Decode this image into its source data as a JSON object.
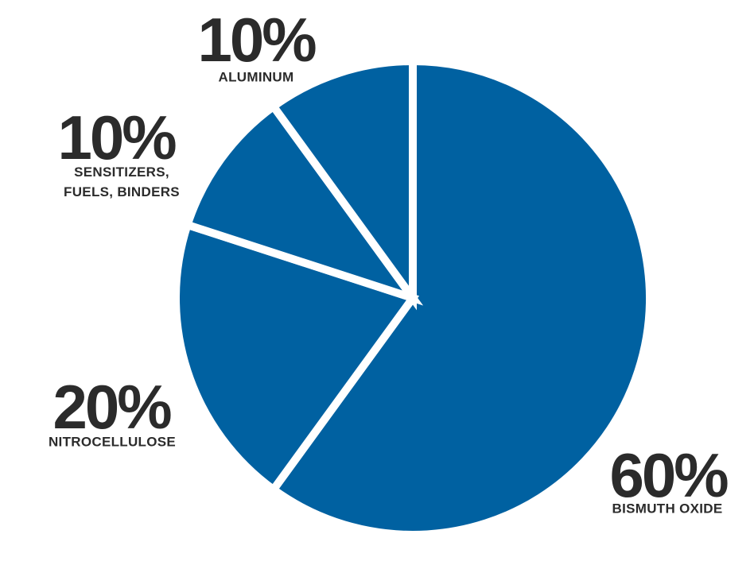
{
  "chart_data": {
    "type": "pie",
    "categories": [
      "BISMUTH OXIDE",
      "NITROCELLULOSE",
      "SENSITIZERS, FUELS, BINDERS",
      "ALUMINUM"
    ],
    "values": [
      60,
      20,
      10,
      10
    ],
    "value_labels": [
      "60%",
      "20%",
      "10%",
      "10%"
    ],
    "color": "#0061a1"
  }
}
